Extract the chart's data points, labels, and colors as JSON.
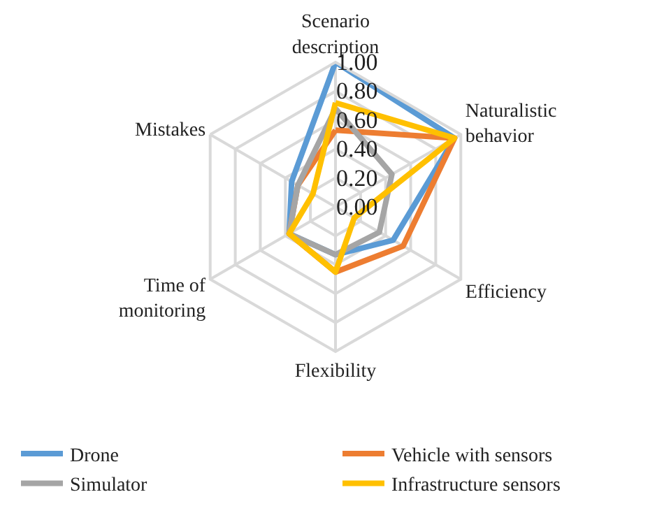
{
  "chart_data": {
    "type": "radar",
    "categories": [
      "Scenario description",
      "Naturalistic behavior",
      "Efficiency",
      "Flexibility",
      "Time of monitoring",
      "Mistakes"
    ],
    "series": [
      {
        "name": "Drone",
        "color": "#5b9bd5",
        "values": [
          1.0,
          0.95,
          0.46,
          0.33,
          0.37,
          0.35
        ]
      },
      {
        "name": "Vehicle with sensors",
        "color": "#ed7d31",
        "values": [
          0.53,
          0.95,
          0.54,
          0.45,
          0.37,
          0.3
        ]
      },
      {
        "name": "Simulator",
        "color": "#a5a5a5",
        "values": [
          0.68,
          0.45,
          0.35,
          0.33,
          0.37,
          0.3
        ]
      },
      {
        "name": "Infrastructure sensors",
        "color": "#ffc000",
        "values": [
          0.72,
          0.95,
          0.15,
          0.45,
          0.37,
          0.18
        ]
      }
    ],
    "ylim": [
      0,
      1
    ],
    "yticks": [
      {
        "value": 0,
        "label": "0.00"
      },
      {
        "value": 0.2,
        "label": "0.20"
      },
      {
        "value": 0.4,
        "label": "0.40"
      },
      {
        "value": 0.6,
        "label": "0.60"
      },
      {
        "value": 0.8,
        "label": "0.80"
      },
      {
        "value": 1,
        "label": "1.00"
      }
    ],
    "legend": "bottom",
    "marker": "none",
    "line_style": "solid"
  }
}
